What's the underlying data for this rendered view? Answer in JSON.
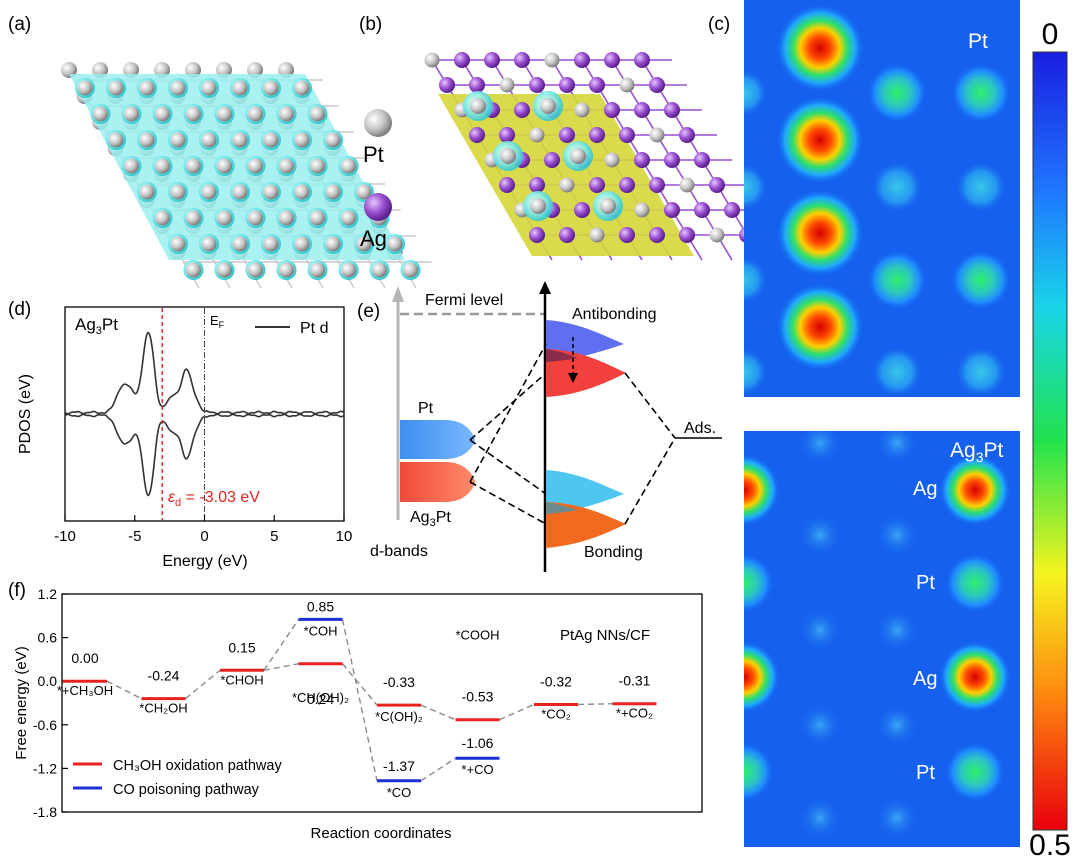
{
  "panels": {
    "a": "(a)",
    "b": "(b)",
    "c": "(c)",
    "d": "(d)",
    "e": "(e)",
    "f": "(f)"
  },
  "legend_b": {
    "pt": "Pt",
    "ag": "Ag",
    "pt_color": "#bfbfbf",
    "ag_color": "#9a4fd0"
  },
  "panel_c": {
    "top_label": "Pt",
    "bottom_label_base": "Ag",
    "bottom_label_sub": "3",
    "bottom_label_tail": "Pt",
    "row_labels": [
      "Ag",
      "Pt",
      "Ag",
      "Pt"
    ],
    "colorbar_top": "0",
    "colorbar_bottom": "0.5"
  },
  "panel_d": {
    "system_base": "Ag",
    "system_sub": "3",
    "system_tail": "Pt",
    "ef_base": "E",
    "ef_sub": "F",
    "legend": "Pt d",
    "ylabel": "PDOS (eV)",
    "xlabel": "Energy (eV)",
    "xticks": [
      "-10",
      "-5",
      "0",
      "5",
      "10"
    ],
    "ed_base": "ε",
    "ed_sub": "d",
    "ed_value": " = -3.03 eV",
    "ed_energy": -3.03
  },
  "panel_e": {
    "fermi": "Fermi level",
    "antibonding": "Antibonding",
    "bonding": "Bonding",
    "pt": "Pt",
    "ag3pt_base": "Ag",
    "ag3pt_sub": "3",
    "ag3pt_tail": "Pt",
    "dbands": "d-bands",
    "ads": "Ads."
  },
  "chart_data": {
    "type": "line",
    "title": "PtAg NNs/CF",
    "xlabel": "Reaction coordinates",
    "ylabel": "Free energy (eV)",
    "ylim": [
      -1.8,
      1.2
    ],
    "yticks": [
      "-1.8",
      "-1.2",
      "-0.6",
      "0.0",
      "0.6",
      "1.2"
    ],
    "series": [
      {
        "name": "CH₃OH oxidation pathway",
        "color": "#e8231f",
        "steps": [
          {
            "x": 1,
            "value": 0.0,
            "label": "0.00",
            "state": "*+CH₃OH"
          },
          {
            "x": 2,
            "value": -0.24,
            "label": "-0.24",
            "state": "*CH₂OH"
          },
          {
            "x": 3,
            "value": 0.15,
            "label": "0.15",
            "state": "*CHOH"
          },
          {
            "x": 4,
            "value": 0.24,
            "label": "0.24",
            "state": "*CH(OH)₂"
          },
          {
            "x": 5,
            "value": -0.33,
            "label": "-0.33",
            "state": "*C(OH)₂"
          },
          {
            "x": 6,
            "value": -0.53,
            "label": "-0.53",
            "state": "*COOH"
          },
          {
            "x": 7,
            "value": -0.32,
            "label": "-0.32",
            "state": "*CO₂"
          },
          {
            "x": 8,
            "value": -0.31,
            "label": "-0.31",
            "state": "*+CO₂"
          }
        ]
      },
      {
        "name": "CO poisoning pathway",
        "color": "#1f2fd6",
        "steps": [
          {
            "x": 4,
            "value": 0.85,
            "label": "0.85",
            "state": "*COH"
          },
          {
            "x": 5,
            "value": -1.37,
            "label": "-1.37",
            "state": "*CO"
          },
          {
            "x": 6,
            "value": -1.06,
            "label": "-1.06",
            "state": "*+CO"
          }
        ]
      }
    ]
  }
}
